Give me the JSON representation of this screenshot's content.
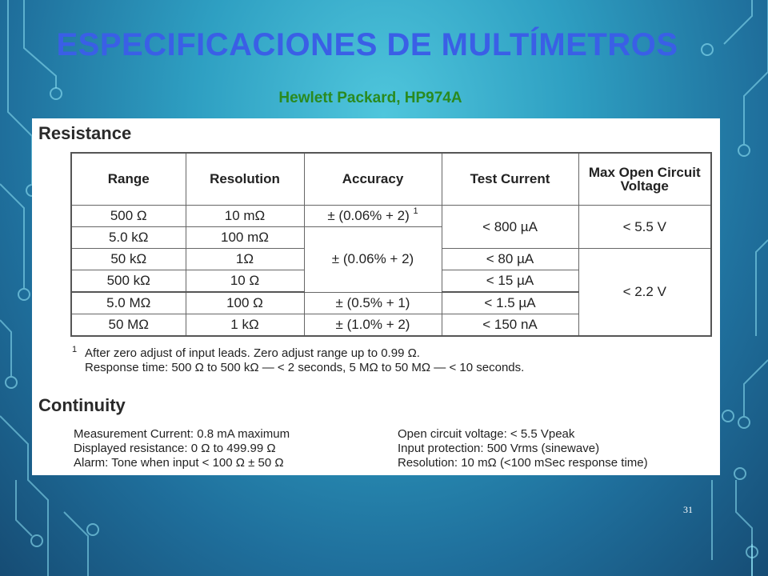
{
  "slide": {
    "title": "ESPECIFICACIONES DE MULTÍMETROS",
    "subtitle": "Hewlett Packard, HP974A",
    "page_number": "31"
  },
  "resistance": {
    "heading": "Resistance",
    "headers": [
      "Range",
      "Resolution",
      "Accuracy",
      "Test Current",
      "Max Open Circuit Voltage"
    ],
    "rows": [
      {
        "range": "500 Ω",
        "resolution": "10 mΩ"
      },
      {
        "range": "5.0 kΩ",
        "resolution": "100 mΩ"
      },
      {
        "range": "50 kΩ",
        "resolution": "1Ω"
      },
      {
        "range": "500 kΩ",
        "resolution": "10 Ω"
      },
      {
        "range": "5.0 MΩ",
        "resolution": "100 Ω"
      },
      {
        "range": "50 MΩ",
        "resolution": "1 kΩ"
      }
    ],
    "accuracy": [
      "± (0.06% + 2)",
      "± (0.06% + 2)",
      "± (0.5% + 1)",
      "± (1.0% + 2)"
    ],
    "accuracy_footnote_mark": "1",
    "test_current": [
      "< 800 µA",
      "< 80  µA",
      "< 15  µA",
      "< 1.5  µA",
      "< 150 nA"
    ],
    "max_voltage": [
      "< 5.5 V",
      "< 2.2 V"
    ],
    "footnote_mark": "1",
    "footnote_lines": [
      "After zero adjust of input leads. Zero adjust range up to 0.99 Ω.",
      "Response time: 500 Ω to 500 kΩ — < 2 seconds, 5 MΩ to 50 MΩ — < 10 seconds."
    ]
  },
  "continuity": {
    "heading": "Continuity",
    "left": [
      "Measurement Current: 0.8 mA maximum",
      "Displayed resistance: 0 Ω to 499.99 Ω",
      "Alarm: Tone when input < 100 Ω ± 50 Ω"
    ],
    "right": [
      "Open circuit voltage: < 5.5 Vpeak",
      "Input protection: 500 Vrms (sinewave)",
      "Resolution: 10 mΩ  (<100 mSec response time)"
    ]
  }
}
